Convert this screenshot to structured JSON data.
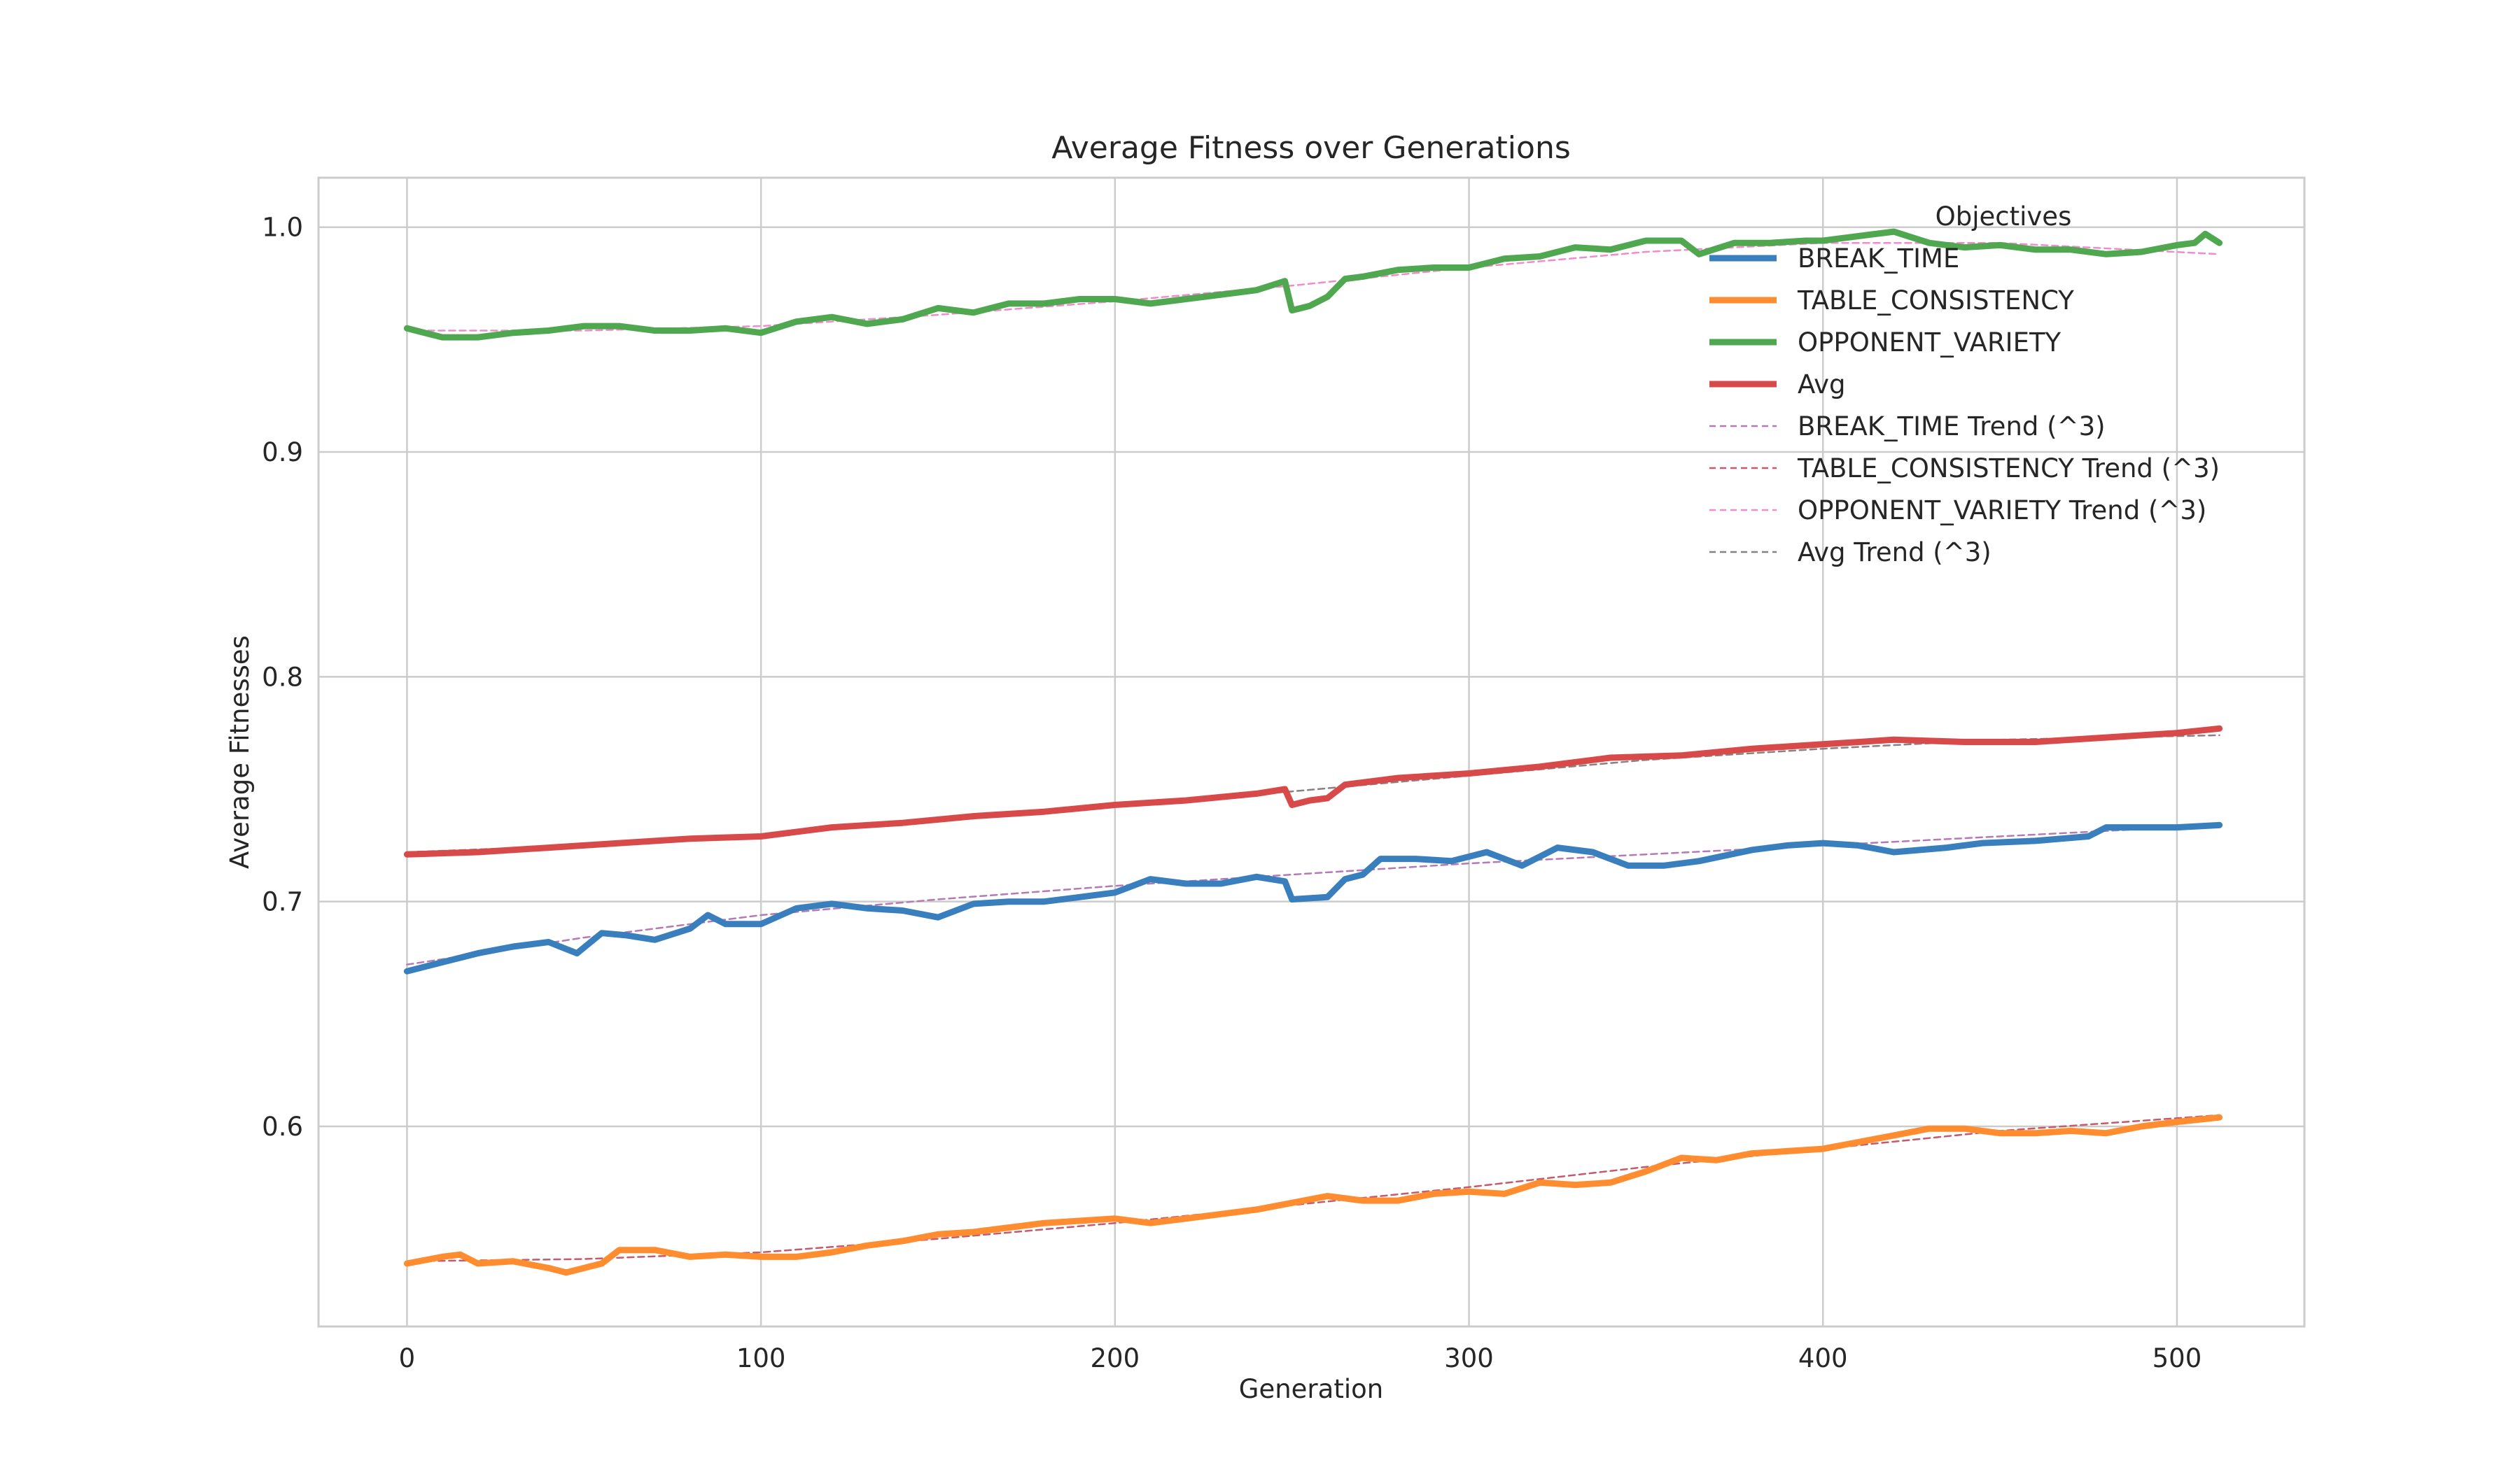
{
  "chart_data": {
    "type": "line",
    "title": "Average Fitness over Generations",
    "xlabel": "Generation",
    "ylabel": "Average Fitnesses",
    "xlim": [
      -25,
      536
    ],
    "ylim": [
      0.511,
      1.022
    ],
    "xticks": [
      0,
      100,
      200,
      300,
      400,
      500
    ],
    "yticks": [
      0.6,
      0.7,
      0.8,
      0.9,
      1.0
    ],
    "xtick_labels": [
      "0",
      "100",
      "200",
      "300",
      "400",
      "500"
    ],
    "ytick_labels": [
      "0.6",
      "0.7",
      "0.8",
      "0.9",
      "1.0"
    ],
    "grid": true,
    "legend": {
      "title": "Objectives",
      "placement": "top-right"
    },
    "series": [
      {
        "name": "BREAK_TIME",
        "color": "#3a7fbd",
        "style": "solid",
        "points": [
          [
            0,
            0.669
          ],
          [
            10,
            0.673
          ],
          [
            20,
            0.677
          ],
          [
            30,
            0.68
          ],
          [
            40,
            0.682
          ],
          [
            48,
            0.677
          ],
          [
            55,
            0.686
          ],
          [
            62,
            0.685
          ],
          [
            70,
            0.683
          ],
          [
            80,
            0.688
          ],
          [
            85,
            0.694
          ],
          [
            90,
            0.69
          ],
          [
            100,
            0.69
          ],
          [
            110,
            0.697
          ],
          [
            120,
            0.699
          ],
          [
            130,
            0.697
          ],
          [
            140,
            0.696
          ],
          [
            150,
            0.693
          ],
          [
            160,
            0.699
          ],
          [
            170,
            0.7
          ],
          [
            180,
            0.7
          ],
          [
            190,
            0.702
          ],
          [
            200,
            0.704
          ],
          [
            210,
            0.71
          ],
          [
            220,
            0.708
          ],
          [
            230,
            0.708
          ],
          [
            240,
            0.711
          ],
          [
            248,
            0.709
          ],
          [
            250,
            0.701
          ],
          [
            260,
            0.702
          ],
          [
            265,
            0.71
          ],
          [
            270,
            0.712
          ],
          [
            275,
            0.719
          ],
          [
            285,
            0.719
          ],
          [
            295,
            0.718
          ],
          [
            305,
            0.722
          ],
          [
            315,
            0.716
          ],
          [
            325,
            0.724
          ],
          [
            335,
            0.722
          ],
          [
            345,
            0.716
          ],
          [
            355,
            0.716
          ],
          [
            365,
            0.718
          ],
          [
            380,
            0.723
          ],
          [
            390,
            0.725
          ],
          [
            400,
            0.726
          ],
          [
            410,
            0.725
          ],
          [
            420,
            0.722
          ],
          [
            435,
            0.724
          ],
          [
            445,
            0.726
          ],
          [
            460,
            0.727
          ],
          [
            475,
            0.729
          ],
          [
            480,
            0.733
          ],
          [
            490,
            0.733
          ],
          [
            500,
            0.733
          ],
          [
            512,
            0.734
          ]
        ]
      },
      {
        "name": "TABLE_CONSISTENCY",
        "color": "#ff8c2e",
        "style": "solid",
        "points": [
          [
            0,
            0.539
          ],
          [
            10,
            0.542
          ],
          [
            15,
            0.543
          ],
          [
            20,
            0.539
          ],
          [
            30,
            0.54
          ],
          [
            40,
            0.537
          ],
          [
            45,
            0.535
          ],
          [
            55,
            0.539
          ],
          [
            60,
            0.545
          ],
          [
            70,
            0.545
          ],
          [
            80,
            0.542
          ],
          [
            90,
            0.543
          ],
          [
            100,
            0.542
          ],
          [
            110,
            0.542
          ],
          [
            120,
            0.544
          ],
          [
            130,
            0.547
          ],
          [
            140,
            0.549
          ],
          [
            150,
            0.552
          ],
          [
            160,
            0.553
          ],
          [
            170,
            0.555
          ],
          [
            180,
            0.557
          ],
          [
            190,
            0.558
          ],
          [
            200,
            0.559
          ],
          [
            210,
            0.557
          ],
          [
            220,
            0.559
          ],
          [
            230,
            0.561
          ],
          [
            240,
            0.563
          ],
          [
            250,
            0.566
          ],
          [
            260,
            0.569
          ],
          [
            270,
            0.567
          ],
          [
            280,
            0.567
          ],
          [
            290,
            0.57
          ],
          [
            300,
            0.571
          ],
          [
            310,
            0.57
          ],
          [
            320,
            0.575
          ],
          [
            330,
            0.574
          ],
          [
            340,
            0.575
          ],
          [
            350,
            0.58
          ],
          [
            360,
            0.586
          ],
          [
            370,
            0.585
          ],
          [
            380,
            0.588
          ],
          [
            390,
            0.589
          ],
          [
            400,
            0.59
          ],
          [
            410,
            0.593
          ],
          [
            420,
            0.596
          ],
          [
            430,
            0.599
          ],
          [
            440,
            0.599
          ],
          [
            450,
            0.597
          ],
          [
            460,
            0.597
          ],
          [
            470,
            0.598
          ],
          [
            480,
            0.597
          ],
          [
            490,
            0.6
          ],
          [
            500,
            0.602
          ],
          [
            512,
            0.604
          ]
        ]
      },
      {
        "name": "OPPONENT_VARIETY",
        "color": "#4fa84f",
        "style": "solid",
        "points": [
          [
            0,
            0.955
          ],
          [
            5,
            0.953
          ],
          [
            10,
            0.951
          ],
          [
            20,
            0.951
          ],
          [
            30,
            0.953
          ],
          [
            40,
            0.954
          ],
          [
            50,
            0.956
          ],
          [
            60,
            0.956
          ],
          [
            70,
            0.954
          ],
          [
            80,
            0.954
          ],
          [
            90,
            0.955
          ],
          [
            100,
            0.953
          ],
          [
            110,
            0.958
          ],
          [
            120,
            0.96
          ],
          [
            130,
            0.957
          ],
          [
            140,
            0.959
          ],
          [
            150,
            0.964
          ],
          [
            160,
            0.962
          ],
          [
            170,
            0.966
          ],
          [
            180,
            0.966
          ],
          [
            190,
            0.968
          ],
          [
            200,
            0.968
          ],
          [
            210,
            0.966
          ],
          [
            220,
            0.968
          ],
          [
            230,
            0.97
          ],
          [
            240,
            0.972
          ],
          [
            248,
            0.976
          ],
          [
            250,
            0.963
          ],
          [
            255,
            0.965
          ],
          [
            260,
            0.969
          ],
          [
            265,
            0.977
          ],
          [
            270,
            0.978
          ],
          [
            280,
            0.981
          ],
          [
            290,
            0.982
          ],
          [
            300,
            0.982
          ],
          [
            310,
            0.986
          ],
          [
            320,
            0.987
          ],
          [
            330,
            0.991
          ],
          [
            340,
            0.99
          ],
          [
            350,
            0.994
          ],
          [
            360,
            0.994
          ],
          [
            365,
            0.988
          ],
          [
            375,
            0.993
          ],
          [
            385,
            0.993
          ],
          [
            395,
            0.994
          ],
          [
            400,
            0.994
          ],
          [
            410,
            0.996
          ],
          [
            420,
            0.998
          ],
          [
            430,
            0.993
          ],
          [
            440,
            0.991
          ],
          [
            450,
            0.992
          ],
          [
            460,
            0.99
          ],
          [
            470,
            0.99
          ],
          [
            480,
            0.988
          ],
          [
            490,
            0.989
          ],
          [
            500,
            0.992
          ],
          [
            505,
            0.993
          ],
          [
            508,
            0.997
          ],
          [
            512,
            0.993
          ]
        ]
      },
      {
        "name": "Avg",
        "color": "#d84a4a",
        "style": "solid",
        "points": [
          [
            0,
            0.721
          ],
          [
            20,
            0.722
          ],
          [
            40,
            0.724
          ],
          [
            60,
            0.726
          ],
          [
            80,
            0.728
          ],
          [
            100,
            0.729
          ],
          [
            120,
            0.733
          ],
          [
            140,
            0.735
          ],
          [
            160,
            0.738
          ],
          [
            180,
            0.74
          ],
          [
            200,
            0.743
          ],
          [
            220,
            0.745
          ],
          [
            240,
            0.748
          ],
          [
            248,
            0.75
          ],
          [
            250,
            0.743
          ],
          [
            255,
            0.745
          ],
          [
            260,
            0.746
          ],
          [
            265,
            0.752
          ],
          [
            280,
            0.755
          ],
          [
            300,
            0.757
          ],
          [
            320,
            0.76
          ],
          [
            340,
            0.764
          ],
          [
            360,
            0.765
          ],
          [
            380,
            0.768
          ],
          [
            400,
            0.77
          ],
          [
            420,
            0.772
          ],
          [
            440,
            0.771
          ],
          [
            460,
            0.771
          ],
          [
            480,
            0.773
          ],
          [
            500,
            0.775
          ],
          [
            512,
            0.777
          ]
        ]
      },
      {
        "name": "BREAK_TIME Trend (^3)",
        "color": "#b57ab5",
        "style": "dashed",
        "points": [
          [
            0,
            0.672
          ],
          [
            50,
            0.684
          ],
          [
            100,
            0.694
          ],
          [
            150,
            0.701
          ],
          [
            200,
            0.707
          ],
          [
            250,
            0.712
          ],
          [
            300,
            0.717
          ],
          [
            350,
            0.721
          ],
          [
            400,
            0.725
          ],
          [
            450,
            0.729
          ],
          [
            512,
            0.734
          ]
        ]
      },
      {
        "name": "TABLE_CONSISTENCY Trend (^3)",
        "color": "#c45a6c",
        "style": "dashed",
        "points": [
          [
            0,
            0.54
          ],
          [
            50,
            0.541
          ],
          [
            100,
            0.544
          ],
          [
            150,
            0.55
          ],
          [
            200,
            0.557
          ],
          [
            250,
            0.565
          ],
          [
            300,
            0.573
          ],
          [
            350,
            0.582
          ],
          [
            400,
            0.59
          ],
          [
            450,
            0.598
          ],
          [
            512,
            0.605
          ]
        ]
      },
      {
        "name": "OPPONENT_VARIETY Trend (^3)",
        "color": "#f08ccb",
        "style": "dashed",
        "points": [
          [
            0,
            0.954
          ],
          [
            50,
            0.954
          ],
          [
            100,
            0.956
          ],
          [
            150,
            0.961
          ],
          [
            200,
            0.967
          ],
          [
            250,
            0.974
          ],
          [
            300,
            0.982
          ],
          [
            350,
            0.989
          ],
          [
            400,
            0.993
          ],
          [
            450,
            0.993
          ],
          [
            512,
            0.988
          ]
        ]
      },
      {
        "name": "Avg Trend (^3)",
        "color": "#8c7f7f",
        "style": "dashed",
        "points": [
          [
            0,
            0.722
          ],
          [
            50,
            0.725
          ],
          [
            100,
            0.73
          ],
          [
            150,
            0.736
          ],
          [
            200,
            0.743
          ],
          [
            250,
            0.749
          ],
          [
            300,
            0.756
          ],
          [
            350,
            0.763
          ],
          [
            400,
            0.768
          ],
          [
            450,
            0.772
          ],
          [
            512,
            0.774
          ]
        ]
      }
    ]
  }
}
